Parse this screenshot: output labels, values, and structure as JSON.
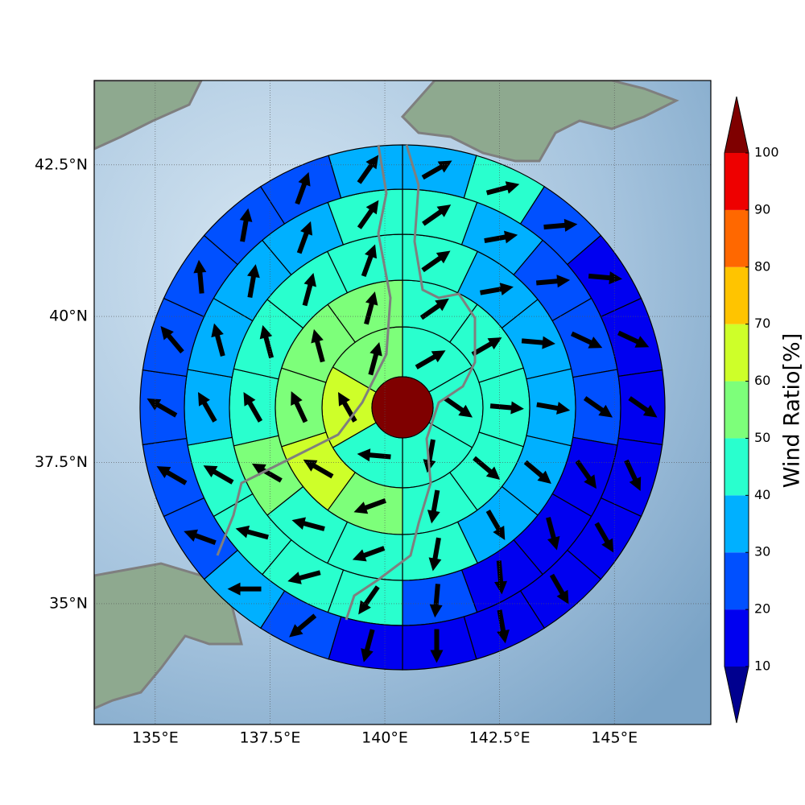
{
  "chart_data": {
    "type": "polar_sectors",
    "projection": "mercator",
    "grid": true,
    "xlim": [
      133.67,
      147.1
    ],
    "ylim": [
      32.8,
      43.85
    ],
    "xticks": [
      {
        "value": 135,
        "label": "135°E"
      },
      {
        "value": 137.5,
        "label": "137.5°E"
      },
      {
        "value": 140,
        "label": "140°E"
      },
      {
        "value": 142.5,
        "label": "142.5°E"
      },
      {
        "value": 145,
        "label": "145°E"
      }
    ],
    "yticks": [
      {
        "value": 35,
        "label": "35°N"
      },
      {
        "value": 37.5,
        "label": "37.5°N"
      },
      {
        "value": 40,
        "label": "40°N"
      },
      {
        "value": 42.5,
        "label": "42.5°N"
      }
    ],
    "center_value": 100,
    "rings": [
      {
        "values": [
          45,
          45,
          45,
          45,
          65,
          55
        ],
        "wind_direction": [
          60,
          125,
          190,
          275,
          330,
          15
        ]
      },
      {
        "values": [
          45,
          45,
          45,
          45,
          45,
          55,
          65,
          55,
          55,
          55
        ],
        "wind_direction": [
          55,
          60,
          95,
          130,
          190,
          250,
          300,
          335,
          345,
          15
        ]
      },
      {
        "values": [
          45,
          35,
          35,
          35,
          35,
          35,
          45,
          45,
          45,
          55,
          45,
          45,
          45,
          45
        ],
        "wind_direction": [
          55,
          80,
          95,
          100,
          130,
          150,
          190,
          250,
          285,
          300,
          330,
          345,
          15,
          20
        ]
      },
      {
        "values": [
          45,
          35,
          25,
          25,
          25,
          15,
          15,
          15,
          25,
          45,
          45,
          45,
          45,
          35,
          35,
          35,
          35,
          45
        ],
        "wind_direction": [
          55,
          80,
          85,
          115,
          125,
          145,
          165,
          175,
          185,
          215,
          255,
          285,
          300,
          330,
          345,
          10,
          20,
          35
        ]
      },
      {
        "values": [
          35,
          45,
          25,
          15,
          15,
          15,
          15,
          15,
          15,
          15,
          15,
          15,
          25,
          35,
          25,
          25,
          25,
          25,
          25,
          25,
          25,
          35
        ],
        "wind_direction": [
          60,
          75,
          85,
          95,
          115,
          125,
          155,
          150,
          150,
          170,
          180,
          195,
          230,
          270,
          290,
          300,
          300,
          320,
          355,
          10,
          20,
          35
        ]
      }
    ],
    "colorbar": {
      "label": "Wind Ratio[%]",
      "levels": [
        10,
        20,
        30,
        40,
        50,
        60,
        70,
        80,
        90,
        100
      ],
      "colors": [
        "#0000f0",
        "#0050ff",
        "#00b0ff",
        "#29ffce",
        "#7dff7a",
        "#ceff29",
        "#ffc400",
        "#ff6800",
        "#ee0000"
      ],
      "under_color": "#00008f",
      "over_color": "#7f0000"
    }
  }
}
